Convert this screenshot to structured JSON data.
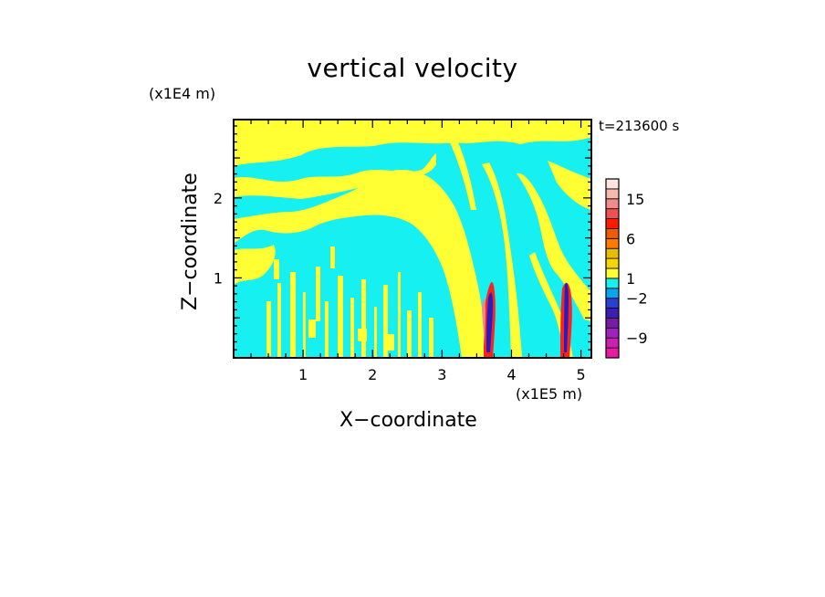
{
  "chart_data": {
    "type": "heatmap",
    "title": "vertical velocity",
    "xlabel": "X−coordinate",
    "ylabel": "Z−coordinate",
    "x_unit": "(x1E5 m)",
    "y_unit": "(x1E4 m)",
    "time_label": "t=213600 s",
    "xlim": [
      0,
      5.15
    ],
    "ylim": [
      0,
      2.98
    ],
    "x_ticks": [
      {
        "value": 1,
        "label": "1"
      },
      {
        "value": 2,
        "label": "2"
      },
      {
        "value": 3,
        "label": "3"
      },
      {
        "value": 4,
        "label": "4"
      },
      {
        "value": 5,
        "label": "5"
      }
    ],
    "y_ticks": [
      {
        "value": 1,
        "label": "1"
      },
      {
        "value": 2,
        "label": "2"
      }
    ],
    "colorbar": {
      "levels": [
        -12,
        -10.5,
        -9,
        -7,
        -5,
        -3.5,
        -2,
        -1,
        1,
        2,
        3,
        4,
        6,
        8,
        11,
        13,
        15,
        18,
        21
      ],
      "colors": [
        "#e81aa0",
        "#cc1fb0",
        "#a020c0",
        "#7a1aa8",
        "#3a1fb0",
        "#2b3fd6",
        "#0aa4f0",
        "#16f0f0",
        "#ffff33",
        "#f5d800",
        "#e8bc00",
        "#ff7a00",
        "#f25a00",
        "#ff1a00",
        "#f05050",
        "#f08c8c",
        "#f6b8b0",
        "#fde4de"
      ],
      "tick_labels": [
        {
          "value": 15,
          "label": "15"
        },
        {
          "value": 6,
          "label": "6"
        },
        {
          "value": 1,
          "label": "1"
        },
        {
          "value": -2,
          "label": "−2"
        },
        {
          "value": -9,
          "label": "−9"
        }
      ]
    },
    "field_colors": {
      "updraft": "#ffff33",
      "downdraft": "#16f0f0",
      "strong_updraft": "#ff2020",
      "strong_downdraft": "#2020c0"
    }
  }
}
